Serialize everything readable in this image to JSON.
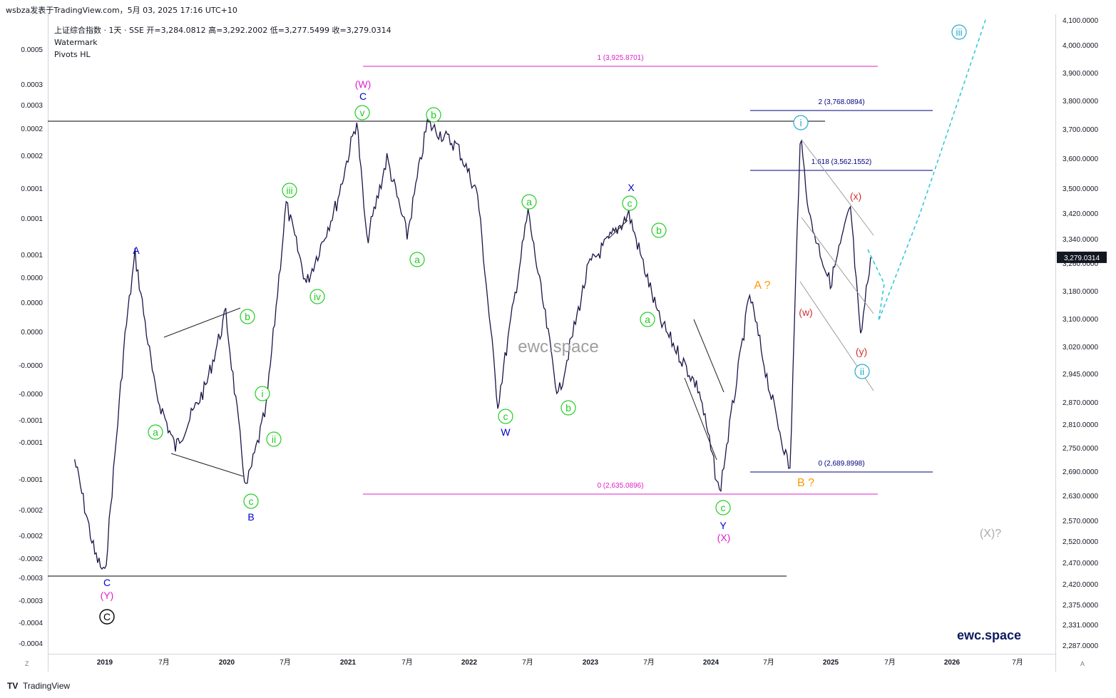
{
  "header": {
    "publish_line": "wsbza发表于TradingView.com，5月 03, 2025 17:16 UTC+10"
  },
  "legend": {
    "symbol_line": "上证综合指数 · 1天 · SSE   开=3,284.0812   高=3,292.2002   低=3,277.5499   收=3,279.0314",
    "line2": "Watermark",
    "line3": "Pivots HL"
  },
  "footer": {
    "logo": "TV",
    "brand": "TradingView",
    "left_corner": "Z",
    "right_corner": "A"
  },
  "colors": {
    "price": "#1a1446",
    "green": "#22cc22",
    "blue": "#0000cc",
    "magenta": "#e020c8",
    "orange": "#ff9800",
    "cyan": "#22aacc",
    "red": "#d32f2f",
    "grey": "#aaaaaa",
    "black": "#000000",
    "navy": "#000080"
  },
  "chart_data": {
    "type": "line",
    "title": "上证综合指数 · 1天 · SSE",
    "last_price": "3,279.0314",
    "y_right_ticks": [
      "4,100.0000",
      "4,000.0000",
      "3,900.0000",
      "3,800.0000",
      "3,700.0000",
      "3,600.0000",
      "3,500.0000",
      "3,420.0000",
      "3,340.0000",
      "3,260.0000",
      "3,180.0000",
      "3,100.0000",
      "3,020.0000",
      "2,945.0000",
      "2,870.0000",
      "2,810.0000",
      "2,750.0000",
      "2,690.0000",
      "2,630.0000",
      "2,570.0000",
      "2,520.0000",
      "2,470.0000",
      "2,420.0000",
      "2,375.0000",
      "2,331.0000",
      "2,287.0000"
    ],
    "y_left_ticks": [
      "0.0005",
      "0.0003",
      "0.0003",
      "0.0002",
      "0.0002",
      "0.0001",
      "0.0001",
      "0.0001",
      "0.0000",
      "0.0000",
      "0.0000",
      "-0.0000",
      "-0.0000",
      "-0.0001",
      "-0.0001",
      "-0.0001",
      "-0.0002",
      "-0.0002",
      "-0.0002",
      "-0.0003",
      "-0.0003",
      "-0.0004",
      "-0.0004"
    ],
    "x_ticks": [
      "2019",
      "7月",
      "2020",
      "7月",
      "2021",
      "7月",
      "2022",
      "7月",
      "2023",
      "7月",
      "2024",
      "7月",
      "2025",
      "7月",
      "2026",
      "7月"
    ],
    "series": [
      {
        "values": [
          {
            "x": "2018-10",
            "y": 2720
          },
          {
            "x": "2018-12",
            "y": 2490
          },
          {
            "x": "2019-01",
            "y": 2440
          },
          {
            "x": "2019-03",
            "y": 3050
          },
          {
            "x": "2019-04",
            "y": 3288
          },
          {
            "x": "2019-06",
            "y": 2900
          },
          {
            "x": "2019-08",
            "y": 2750
          },
          {
            "x": "2019-11",
            "y": 2910
          },
          {
            "x": "2020-01",
            "y": 3115
          },
          {
            "x": "2020-03",
            "y": 2646
          },
          {
            "x": "2020-05",
            "y": 2850
          },
          {
            "x": "2020-07",
            "y": 3450
          },
          {
            "x": "2020-09",
            "y": 3200
          },
          {
            "x": "2020-12",
            "y": 3450
          },
          {
            "x": "2021-02",
            "y": 3731
          },
          {
            "x": "2021-03",
            "y": 3330
          },
          {
            "x": "2021-05",
            "y": 3600
          },
          {
            "x": "2021-07",
            "y": 3350
          },
          {
            "x": "2021-09",
            "y": 3720
          },
          {
            "x": "2021-12",
            "y": 3640
          },
          {
            "x": "2022-02",
            "y": 3480
          },
          {
            "x": "2022-04",
            "y": 2863
          },
          {
            "x": "2022-07",
            "y": 3424
          },
          {
            "x": "2022-10",
            "y": 2885
          },
          {
            "x": "2023-01",
            "y": 3250
          },
          {
            "x": "2023-05",
            "y": 3418
          },
          {
            "x": "2023-08",
            "y": 3100
          },
          {
            "x": "2023-12",
            "y": 2900
          },
          {
            "x": "2024-02",
            "y": 2635
          },
          {
            "x": "2024-05",
            "y": 3170
          },
          {
            "x": "2024-07",
            "y": 2900
          },
          {
            "x": "2024-09",
            "y": 2690
          },
          {
            "x": "2024-10",
            "y": 3674
          },
          {
            "x": "2024-11",
            "y": 3400
          },
          {
            "x": "2025-01",
            "y": 3200
          },
          {
            "x": "2025-03",
            "y": 3440
          },
          {
            "x": "2025-04",
            "y": 3040
          },
          {
            "x": "2025-05",
            "y": 3279
          }
        ]
      }
    ],
    "fib_levels": [
      {
        "label": "1 (3,925.8701)",
        "value": 3925.8701
      },
      {
        "label": "0 (2,635.0896)",
        "value": 2635.0896
      },
      {
        "label": "2 (3,768.0894)",
        "value": 3768.0894
      },
      {
        "label": "1.618 (3,562.1552)",
        "value": 3562.1552
      },
      {
        "label": "0 (2,689.8998)",
        "value": 2689.8998
      }
    ],
    "wave_labels": [
      {
        "text": "A",
        "color": "blue"
      },
      {
        "text": "C",
        "color": "blue"
      },
      {
        "text": "(Y)",
        "color": "magenta"
      },
      {
        "text": "C",
        "color": "black"
      },
      {
        "text": "a",
        "color": "green"
      },
      {
        "text": "b",
        "color": "green"
      },
      {
        "text": "c",
        "color": "green"
      },
      {
        "text": "B",
        "color": "blue"
      },
      {
        "text": "i",
        "color": "green"
      },
      {
        "text": "ii",
        "color": "green"
      },
      {
        "text": "iii",
        "color": "green"
      },
      {
        "text": "iv",
        "color": "green"
      },
      {
        "text": "v",
        "color": "green"
      },
      {
        "text": "(W)",
        "color": "magenta"
      },
      {
        "text": "C",
        "color": "blue"
      },
      {
        "text": "b",
        "color": "green"
      },
      {
        "text": "a",
        "color": "green"
      },
      {
        "text": "W",
        "color": "blue"
      },
      {
        "text": "c",
        "color": "green"
      },
      {
        "text": "a",
        "color": "green"
      },
      {
        "text": "b",
        "color": "green"
      },
      {
        "text": "X",
        "color": "blue"
      },
      {
        "text": "c",
        "color": "green"
      },
      {
        "text": "b",
        "color": "green"
      },
      {
        "text": "a",
        "color": "green"
      },
      {
        "text": "c",
        "color": "green"
      },
      {
        "text": "Y",
        "color": "blue"
      },
      {
        "text": "(X)",
        "color": "magenta"
      },
      {
        "text": "A ?",
        "color": "orange"
      },
      {
        "text": "B ?",
        "color": "orange"
      },
      {
        "text": "i",
        "color": "cyan"
      },
      {
        "text": "ii",
        "color": "cyan"
      },
      {
        "text": "iii",
        "color": "cyan"
      },
      {
        "text": "(w)",
        "color": "red"
      },
      {
        "text": "(x)",
        "color": "red"
      },
      {
        "text": "(y)",
        "color": "red"
      },
      {
        "text": "(X)?",
        "color": "grey"
      }
    ],
    "watermark": "ewc.space",
    "brand_mark": "ewc.space"
  }
}
